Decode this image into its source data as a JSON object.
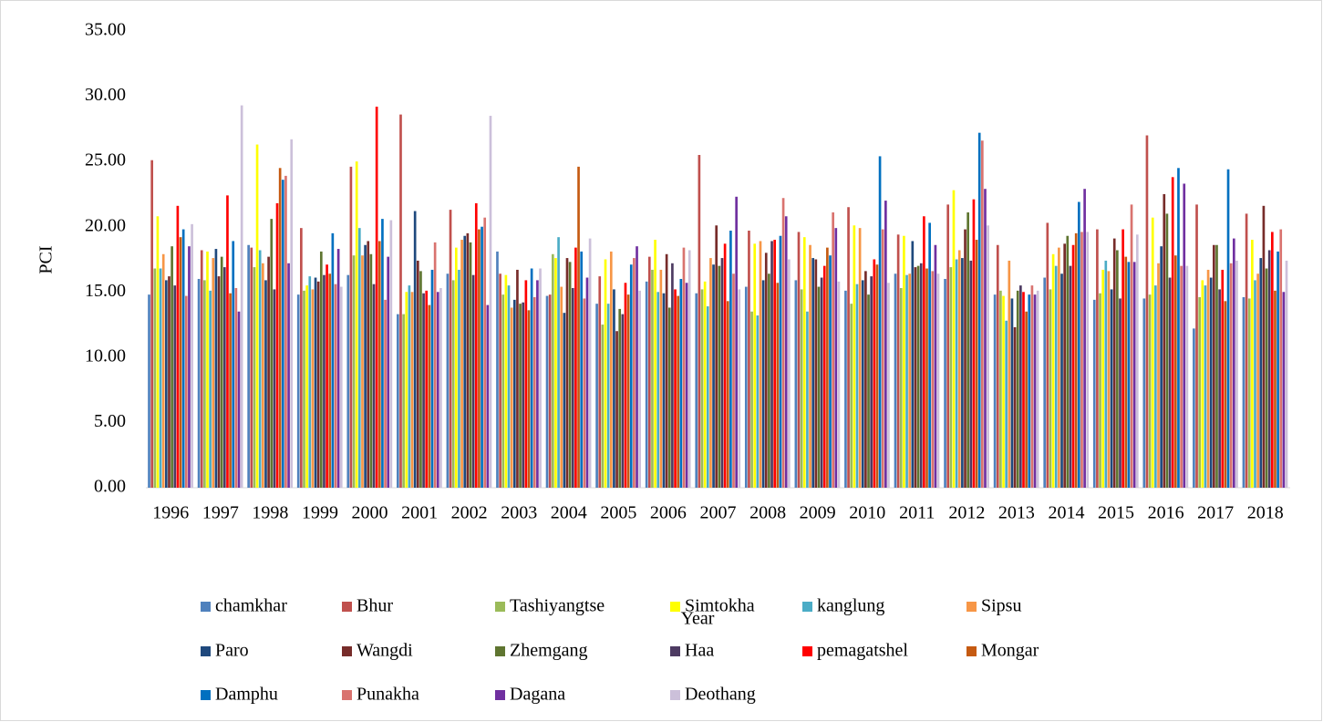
{
  "chart_data": {
    "type": "bar",
    "y_label": "PCI",
    "x_label": "Year",
    "categories": [
      "1996",
      "1997",
      "1998",
      "1999",
      "2000",
      "2001",
      "2002",
      "2003",
      "2004",
      "2005",
      "2006",
      "2007",
      "2008",
      "2009",
      "2010",
      "2011",
      "2012",
      "2013",
      "2014",
      "2015",
      "2016",
      "2017",
      "2018"
    ],
    "ylim": [
      0,
      35
    ],
    "yticks": [
      {
        "value": 0,
        "label": "0.00"
      },
      {
        "value": 5,
        "label": "5.00"
      },
      {
        "value": 10,
        "label": "10.00"
      },
      {
        "value": 15,
        "label": "15.00"
      },
      {
        "value": 20,
        "label": "20.00"
      },
      {
        "value": 25,
        "label": "25.00"
      },
      {
        "value": 30,
        "label": "30.00"
      },
      {
        "value": 35,
        "label": "35.00"
      }
    ],
    "grid": false,
    "legend": "bottom",
    "series": [
      {
        "name": "chamkhar",
        "color": "#4f81bd",
        "values": [
          14.8,
          16.0,
          18.6,
          14.8,
          16.3,
          13.3,
          16.4,
          18.1,
          14.7,
          14.1,
          15.8,
          14.9,
          15.4,
          15.9,
          15.1,
          16.4,
          16.0,
          14.8,
          16.1,
          14.4,
          14.5,
          12.2,
          14.6
        ]
      },
      {
        "name": "Bhur",
        "color": "#c0504d",
        "values": [
          25.1,
          18.2,
          18.4,
          19.9,
          24.6,
          28.6,
          21.3,
          16.4,
          14.8,
          16.2,
          17.7,
          25.5,
          19.7,
          19.6,
          21.5,
          19.4,
          21.7,
          18.6,
          20.3,
          19.8,
          27.0,
          21.7,
          21.0
        ]
      },
      {
        "name": "Tashiyangtse",
        "color": "#9bbb59",
        "values": [
          16.8,
          15.9,
          16.9,
          15.1,
          17.8,
          13.3,
          15.9,
          14.8,
          17.9,
          12.5,
          16.7,
          15.2,
          13.5,
          15.2,
          14.1,
          15.3,
          16.9,
          15.1,
          15.2,
          14.9,
          14.8,
          14.6,
          14.5
        ]
      },
      {
        "name": "Simtokha",
        "color": "#ffff00",
        "values": [
          20.8,
          18.1,
          26.3,
          15.5,
          25.0,
          15.0,
          18.4,
          16.3,
          17.6,
          17.5,
          19.0,
          15.8,
          18.7,
          19.2,
          20.1,
          19.3,
          22.8,
          14.7,
          17.9,
          16.7,
          20.7,
          15.9,
          19.0
        ]
      },
      {
        "name": "kanglung",
        "color": "#4bacc6",
        "values": [
          16.8,
          15.1,
          18.2,
          16.2,
          19.9,
          15.5,
          16.7,
          15.5,
          19.2,
          14.1,
          15.0,
          13.9,
          13.2,
          13.5,
          15.6,
          16.3,
          17.5,
          12.8,
          17.0,
          17.4,
          15.5,
          15.5,
          15.9
        ]
      },
      {
        "name": "Sipsu",
        "color": "#f79646",
        "values": [
          17.9,
          17.6,
          17.2,
          15.2,
          17.8,
          15.0,
          19.0,
          13.8,
          15.4,
          18.1,
          16.7,
          17.6,
          18.9,
          18.6,
          19.9,
          16.4,
          18.2,
          17.4,
          18.4,
          16.6,
          17.2,
          16.7,
          16.4
        ]
      },
      {
        "name": "Paro",
        "color": "#1f497d",
        "values": [
          15.9,
          18.3,
          15.9,
          16.1,
          18.6,
          21.2,
          19.3,
          14.4,
          13.4,
          15.2,
          14.9,
          17.1,
          15.9,
          17.6,
          15.9,
          18.9,
          17.6,
          14.5,
          16.4,
          15.2,
          18.5,
          16.1,
          17.6
        ]
      },
      {
        "name": "Wangdi",
        "color": "#772c2a",
        "values": [
          16.2,
          16.2,
          17.7,
          15.8,
          18.9,
          17.4,
          19.5,
          16.7,
          17.6,
          12.0,
          17.9,
          20.1,
          18.0,
          17.5,
          16.6,
          16.9,
          19.8,
          12.3,
          18.7,
          19.1,
          22.5,
          18.6,
          21.6
        ]
      },
      {
        "name": "Zhemgang",
        "color": "#5f7530",
        "values": [
          18.5,
          17.7,
          20.6,
          18.1,
          17.9,
          16.6,
          18.8,
          14.1,
          17.3,
          13.7,
          13.8,
          17.0,
          16.4,
          15.4,
          14.8,
          17.0,
          21.1,
          15.1,
          19.3,
          18.2,
          21.0,
          18.6,
          16.8
        ]
      },
      {
        "name": "Haa",
        "color": "#4d3b62",
        "values": [
          15.5,
          16.9,
          15.2,
          16.3,
          15.6,
          14.9,
          16.3,
          14.2,
          15.3,
          13.3,
          17.2,
          17.6,
          18.9,
          16.1,
          16.2,
          17.2,
          17.4,
          15.5,
          17.0,
          14.5,
          16.1,
          15.2,
          18.2
        ]
      },
      {
        "name": "pemagatshel",
        "color": "#ff0000",
        "values": [
          21.6,
          22.4,
          21.8,
          17.1,
          29.2,
          15.1,
          21.8,
          15.9,
          18.4,
          15.7,
          15.2,
          18.7,
          19.0,
          17.0,
          17.5,
          20.8,
          22.1,
          15.0,
          18.6,
          19.8,
          23.8,
          16.7,
          19.6
        ]
      },
      {
        "name": "Mongar",
        "color": "#c55a11",
        "values": [
          19.2,
          14.9,
          24.5,
          16.4,
          18.9,
          14.0,
          19.8,
          13.6,
          24.6,
          14.8,
          14.7,
          14.3,
          15.7,
          18.4,
          17.1,
          16.8,
          19.0,
          13.5,
          19.5,
          17.7,
          17.8,
          14.3,
          15.1
        ]
      },
      {
        "name": "Damphu",
        "color": "#0070c0",
        "values": [
          19.8,
          18.9,
          23.6,
          19.5,
          20.6,
          16.7,
          20.0,
          16.8,
          18.1,
          17.1,
          16.0,
          19.7,
          19.3,
          17.8,
          25.4,
          20.3,
          27.2,
          14.8,
          21.9,
          17.3,
          24.5,
          24.4,
          18.1
        ]
      },
      {
        "name": "Punakha",
        "color": "#d9736f",
        "values": [
          14.7,
          15.3,
          23.9,
          15.6,
          14.4,
          18.8,
          20.7,
          14.6,
          14.5,
          17.6,
          18.4,
          16.4,
          22.2,
          21.1,
          19.8,
          16.6,
          26.6,
          15.5,
          19.6,
          21.7,
          17.0,
          17.2,
          19.8
        ]
      },
      {
        "name": "Dagana",
        "color": "#7030a0",
        "values": [
          18.5,
          13.5,
          17.2,
          18.3,
          17.7,
          15.0,
          14.0,
          15.9,
          16.1,
          18.5,
          15.7,
          22.3,
          20.8,
          19.9,
          22.0,
          18.6,
          22.9,
          14.8,
          22.9,
          17.3,
          23.3,
          19.1,
          15.0
        ]
      },
      {
        "name": "Deothang",
        "color": "#ccc0da",
        "values": [
          20.2,
          29.3,
          26.7,
          15.4,
          20.5,
          15.3,
          28.5,
          16.8,
          19.1,
          15.1,
          18.2,
          15.2,
          17.5,
          15.8,
          15.7,
          16.4,
          20.1,
          15.1,
          19.6,
          19.4,
          17.0,
          17.4,
          17.4
        ]
      }
    ]
  }
}
